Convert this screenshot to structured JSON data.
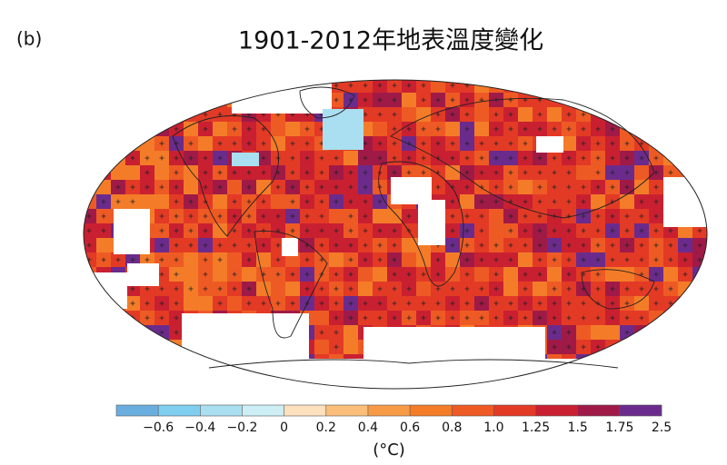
{
  "panel_label": "(b)",
  "title": "1901-2012年地表溫度變化",
  "colorbar": {
    "colors": [
      "#6aaee0",
      "#7fcdef",
      "#a9dff0",
      "#cdeef5",
      "#fde0bd",
      "#fbbd7a",
      "#f79a45",
      "#f47c28",
      "#ee5a24",
      "#e33a26",
      "#c92031",
      "#a01a47",
      "#6b2b8c"
    ],
    "ticks": [
      {
        "value": -0.6,
        "label": "−0.6"
      },
      {
        "value": -0.4,
        "label": "−0.4"
      },
      {
        "value": -0.2,
        "label": "−0.2"
      },
      0,
      0.2,
      0.4,
      0.6,
      0.8,
      {
        "value": 1,
        "label": "1.0"
      },
      1.25,
      1.5,
      1.75,
      2.5
    ],
    "unit": "(°C)"
  }
}
